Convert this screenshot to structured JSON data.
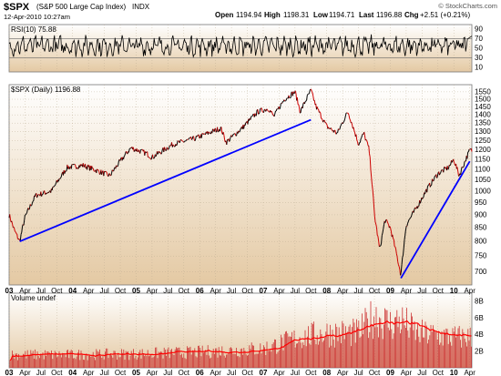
{
  "header": {
    "symbol": "$SPX",
    "name": "(S&P 500 Large Cap Index)",
    "exchange": "INDX",
    "date": "12-Apr-2010 10:27am",
    "watermark": "© StockCharts.com",
    "open_label": "Open",
    "open": "1194.94",
    "high_label": "High",
    "high": "1198.31",
    "low_label": "Low",
    "low": "1194.71",
    "last_label": "Last",
    "last": "1196.88",
    "chg_label": "Chg",
    "chg": "+2.51 (+0.21%)"
  },
  "panels": {
    "rsi_label": "RSI(10) 75.88",
    "price_label": "$SPX (Daily) 1196.88",
    "volume_label": "Volume undef"
  },
  "colors": {
    "panel_bg_top": "#ffffff",
    "panel_bg_bottom": "#e4c9a3",
    "price_line": "#000000",
    "down_line": "#cc0000",
    "trendline": "#0000ff",
    "volume_bar": "#cc3333",
    "volume_ma": "#ff0000"
  },
  "chart_data": [
    {
      "type": "line",
      "title": "RSI(10) 75.88",
      "ylim": [
        0,
        100
      ],
      "y_ticks": [
        10,
        30,
        50,
        70,
        90
      ],
      "levels": [
        30,
        70
      ],
      "last": 75.88
    },
    {
      "type": "line",
      "title": "$SPX (Daily) 1196.88",
      "scale": "log",
      "ylim": [
        660,
        1600
      ],
      "y_ticks": [
        700,
        750,
        800,
        850,
        900,
        950,
        1000,
        1050,
        1100,
        1150,
        1200,
        1250,
        1300,
        1350,
        1400,
        1450,
        1500,
        1550
      ],
      "x_range": [
        "2003-01",
        "2010-04"
      ],
      "x_tick_labels": [
        "03",
        "Apr",
        "Jul",
        "Oct",
        "04",
        "Apr",
        "Jul",
        "Oct",
        "05",
        "Apr",
        "Jul",
        "Oct",
        "06",
        "Apr",
        "Jul",
        "Oct",
        "07",
        "Apr",
        "Jul",
        "Oct",
        "08",
        "Apr",
        "Jul",
        "Oct",
        "09",
        "Apr",
        "Jul",
        "Oct",
        "10",
        "Apr"
      ],
      "series": [
        {
          "x": [
            "2003-01",
            "2003-02",
            "2003-03",
            "2003-04",
            "2003-06",
            "2003-09",
            "2003-12",
            "2004-03",
            "2004-05",
            "2004-08",
            "2004-12",
            "2005-03",
            "2005-04",
            "2005-08",
            "2005-12",
            "2006-05",
            "2006-06",
            "2006-09",
            "2006-12",
            "2007-02",
            "2007-03",
            "2007-05",
            "2007-07",
            "2007-08",
            "2007-10",
            "2007-11",
            "2008-01",
            "2008-03",
            "2008-05",
            "2008-07",
            "2008-08",
            "2008-09",
            "2008-10",
            "2008-11",
            "2008-12",
            "2009-01",
            "2009-02",
            "2009-03",
            "2009-04",
            "2009-06",
            "2009-08",
            "2009-10",
            "2009-12",
            "2010-01",
            "2010-02",
            "2010-04"
          ],
          "values": [
            900,
            840,
            800,
            890,
            980,
            1000,
            1110,
            1120,
            1100,
            1070,
            1210,
            1180,
            1160,
            1230,
            1260,
            1320,
            1240,
            1320,
            1420,
            1440,
            1390,
            1500,
            1550,
            1420,
            1560,
            1450,
            1330,
            1290,
            1420,
            1230,
            1290,
            1200,
            900,
            770,
            880,
            850,
            770,
            690,
            860,
            930,
            1010,
            1080,
            1110,
            1150,
            1070,
            1197
          ]
        }
      ],
      "trendlines": [
        {
          "x": [
            "2003-03",
            "2007-10"
          ],
          "values": [
            800,
            1370
          ]
        },
        {
          "x": [
            "2009-03",
            "2010-04"
          ],
          "values": [
            680,
            1140
          ]
        }
      ]
    },
    {
      "type": "bar",
      "title": "Volume undef",
      "y_ticks": [
        "2B",
        "4B",
        "6B",
        "8B"
      ],
      "ylim": [
        0,
        9
      ],
      "unit": "B",
      "series": [
        {
          "x": [
            "2003-01",
            "2004-01",
            "2005-01",
            "2006-01",
            "2007-01",
            "2007-08",
            "2008-01",
            "2008-07",
            "2008-10",
            "2009-01",
            "2009-03",
            "2009-06",
            "2010-01",
            "2010-04"
          ],
          "values": [
            1.5,
            1.5,
            1.6,
            1.8,
            2.2,
            3.5,
            4,
            4,
            6,
            5,
            5.5,
            4,
            3.5,
            3.5
          ]
        }
      ]
    }
  ]
}
